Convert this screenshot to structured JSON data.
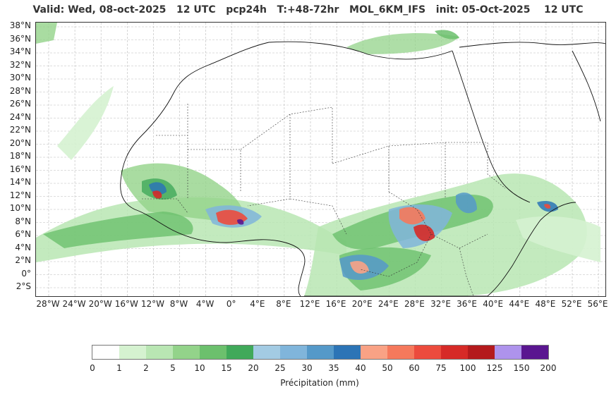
{
  "title": "Valid: Wed, 08-oct-2025   12 UTC   pcp24h   T:+48-72hr   MOL_6KM_IFS   init: 05-Oct-2025    12 UTC",
  "map": {
    "lat_labels": [
      "38°N",
      "36°N",
      "34°N",
      "32°N",
      "30°N",
      "28°N",
      "26°N",
      "24°N",
      "22°N",
      "20°N",
      "18°N",
      "16°N",
      "14°N",
      "12°N",
      "10°N",
      "8°N",
      "6°N",
      "4°N",
      "2°N",
      "0°",
      "2°S"
    ],
    "lon_labels": [
      "28°W",
      "24°W",
      "20°W",
      "16°W",
      "12°W",
      "8°W",
      "4°W",
      "0°",
      "4°E",
      "8°E",
      "12°E",
      "16°E",
      "20°E",
      "24°E",
      "28°E",
      "32°E",
      "36°E",
      "40°E",
      "44°E",
      "48°E",
      "52°E",
      "56°E"
    ],
    "grid": true
  },
  "colorbar": {
    "label": "Précipitation (mm)",
    "ticks": [
      "0",
      "1",
      "2",
      "5",
      "10",
      "15",
      "20",
      "25",
      "30",
      "35",
      "40",
      "50",
      "60",
      "75",
      "100",
      "125",
      "150",
      "200"
    ],
    "colors": [
      "#ffffff",
      "#d5f2d0",
      "#b9e6b3",
      "#93d38a",
      "#6cc06d",
      "#40a95a",
      "#a3cbe3",
      "#80b5db",
      "#5599c9",
      "#2c74b6",
      "#f9a285",
      "#f5795c",
      "#ec4b3d",
      "#d62a27",
      "#b41a1c",
      "#ae93ec",
      "#5a1690"
    ]
  }
}
